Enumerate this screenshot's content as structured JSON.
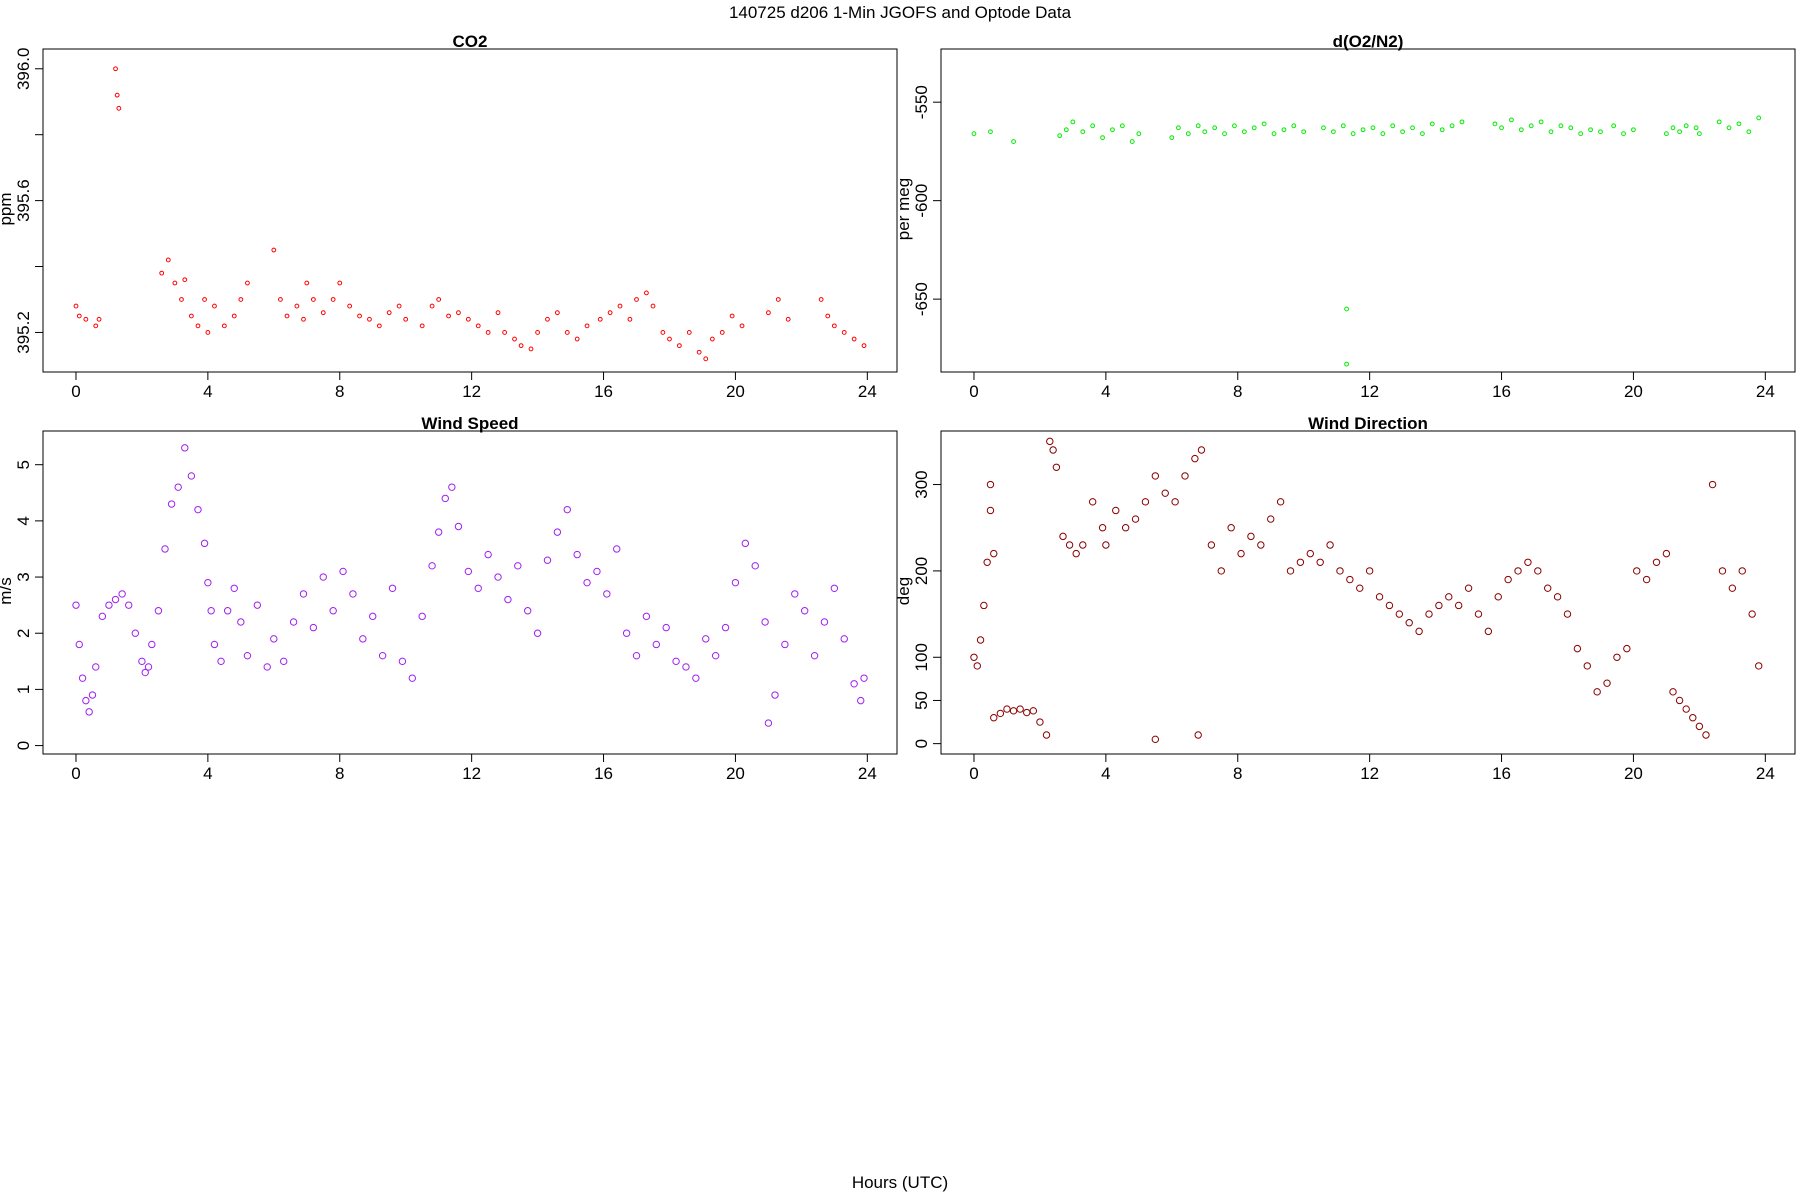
{
  "figure": {
    "title": "140725   d206   1-Min  JGOFS and Optode Data",
    "xlabel": "Hours (UTC)"
  },
  "chart_data": [
    {
      "type": "scatter",
      "title": "CO2",
      "xlabel": "",
      "ylabel": "ppm",
      "xlim": [
        -1,
        24.9
      ],
      "ylim": [
        395.08,
        396.06
      ],
      "xticks": [
        0,
        4,
        8,
        12,
        16,
        20,
        24
      ],
      "yticks": [
        395.2,
        395.6,
        396.0
      ],
      "yticks_unlabeled": [
        395.4,
        395.8
      ],
      "color": "#ff0000",
      "marker": "small-open-circle",
      "series": [
        {
          "x": [
            0.0,
            0.1,
            0.3,
            0.6,
            0.7,
            1.2,
            1.25,
            1.3,
            2.6,
            2.8,
            3.0,
            3.2,
            3.3,
            3.5,
            3.7,
            3.9,
            4.0,
            4.2,
            4.5,
            4.8,
            5.0,
            5.2,
            6.0,
            6.2,
            6.4,
            6.7,
            6.9,
            7.0,
            7.2,
            7.5,
            7.8,
            8.0,
            8.3,
            8.6,
            8.9,
            9.2,
            9.5,
            9.8,
            10.0,
            10.5,
            10.8,
            11.0,
            11.3,
            11.6,
            11.9,
            12.2,
            12.5,
            12.8,
            13.0,
            13.3,
            13.5,
            13.8,
            14.0,
            14.3,
            14.6,
            14.9,
            15.2,
            15.5,
            15.9,
            16.2,
            16.5,
            16.8,
            17.0,
            17.3,
            17.5,
            17.8,
            18.0,
            18.3,
            18.6,
            18.9,
            19.1,
            19.3,
            19.6,
            19.9,
            20.2,
            21.0,
            21.3,
            21.6,
            22.6,
            22.8,
            23.0,
            23.3,
            23.6,
            23.9
          ],
          "y": [
            395.28,
            395.25,
            395.24,
            395.22,
            395.24,
            396.0,
            395.92,
            395.88,
            395.38,
            395.42,
            395.35,
            395.3,
            395.36,
            395.25,
            395.22,
            395.3,
            395.2,
            395.28,
            395.22,
            395.25,
            395.3,
            395.35,
            395.45,
            395.3,
            395.25,
            395.28,
            395.24,
            395.35,
            395.3,
            395.26,
            395.3,
            395.35,
            395.28,
            395.25,
            395.24,
            395.22,
            395.26,
            395.28,
            395.24,
            395.22,
            395.28,
            395.3,
            395.25,
            395.26,
            395.24,
            395.22,
            395.2,
            395.26,
            395.2,
            395.18,
            395.16,
            395.15,
            395.2,
            395.24,
            395.26,
            395.2,
            395.18,
            395.22,
            395.24,
            395.26,
            395.28,
            395.24,
            395.3,
            395.32,
            395.28,
            395.2,
            395.18,
            395.16,
            395.2,
            395.14,
            395.12,
            395.18,
            395.2,
            395.25,
            395.22,
            395.26,
            395.3,
            395.24,
            395.3,
            395.25,
            395.22,
            395.2,
            395.18,
            395.16
          ]
        }
      ]
    },
    {
      "type": "scatter",
      "title": "d(O2/N2)",
      "xlabel": "",
      "ylabel": "per meg",
      "xlim": [
        -1,
        24.9
      ],
      "ylim": [
        -687,
        -523
      ],
      "xticks": [
        0,
        4,
        8,
        12,
        16,
        20,
        24
      ],
      "yticks": [
        -650,
        -600,
        -550
      ],
      "color": "#00ee00",
      "marker": "small-open-circle",
      "series": [
        {
          "x": [
            0.0,
            0.5,
            1.2,
            2.6,
            2.8,
            3.0,
            3.3,
            3.6,
            3.9,
            4.2,
            4.5,
            4.8,
            5.0,
            6.0,
            6.2,
            6.5,
            6.8,
            7.0,
            7.3,
            7.6,
            7.9,
            8.2,
            8.5,
            8.8,
            9.1,
            9.4,
            9.7,
            10.0,
            10.6,
            10.9,
            11.2,
            11.5,
            11.8,
            12.1,
            12.4,
            12.7,
            13.0,
            13.3,
            13.6,
            13.9,
            14.2,
            14.5,
            14.8,
            15.8,
            16.0,
            16.3,
            16.6,
            16.9,
            17.2,
            17.5,
            17.8,
            18.1,
            18.4,
            18.7,
            19.0,
            19.4,
            19.7,
            20.0,
            21.0,
            21.2,
            21.4,
            21.6,
            21.9,
            22.0,
            22.6,
            22.9,
            23.2,
            23.5,
            23.8,
            11.3,
            11.3
          ],
          "y": [
            -566,
            -565,
            -570,
            -567,
            -564,
            -560,
            -565,
            -562,
            -568,
            -564,
            -562,
            -570,
            -566,
            -568,
            -563,
            -566,
            -562,
            -565,
            -563,
            -566,
            -562,
            -565,
            -563,
            -561,
            -566,
            -564,
            -562,
            -565,
            -563,
            -565,
            -562,
            -566,
            -564,
            -563,
            -566,
            -562,
            -565,
            -563,
            -566,
            -561,
            -564,
            -562,
            -560,
            -561,
            -563,
            -559,
            -564,
            -562,
            -560,
            -565,
            -562,
            -563,
            -566,
            -564,
            -565,
            -562,
            -566,
            -564,
            -566,
            -563,
            -565,
            -562,
            -563,
            -566,
            -560,
            -563,
            -561,
            -565,
            -558,
            -655,
            -683
          ]
        }
      ]
    },
    {
      "type": "scatter",
      "title": "Wind Speed",
      "xlabel": "",
      "ylabel": "m/s",
      "xlim": [
        -1,
        24.9
      ],
      "ylim": [
        -0.15,
        5.6
      ],
      "xticks": [
        0,
        4,
        8,
        12,
        16,
        20,
        24
      ],
      "yticks": [
        0,
        1,
        2,
        3,
        4,
        5
      ],
      "color": "#a020f0",
      "marker": "open-circle",
      "series": [
        {
          "x": [
            0.0,
            0.1,
            0.2,
            0.3,
            0.4,
            0.5,
            0.6,
            0.8,
            1.0,
            1.2,
            1.4,
            1.6,
            1.8,
            2.0,
            2.1,
            2.2,
            2.3,
            2.5,
            2.7,
            2.9,
            3.1,
            3.3,
            3.5,
            3.7,
            3.9,
            4.0,
            4.1,
            4.2,
            4.4,
            4.6,
            4.8,
            5.0,
            5.2,
            5.5,
            5.8,
            6.0,
            6.3,
            6.6,
            6.9,
            7.2,
            7.5,
            7.8,
            8.1,
            8.4,
            8.7,
            9.0,
            9.3,
            9.6,
            9.9,
            10.2,
            10.5,
            10.8,
            11.0,
            11.2,
            11.4,
            11.6,
            11.9,
            12.2,
            12.5,
            12.8,
            13.1,
            13.4,
            13.7,
            14.0,
            14.3,
            14.6,
            14.9,
            15.2,
            15.5,
            15.8,
            16.1,
            16.4,
            16.7,
            17.0,
            17.3,
            17.6,
            17.9,
            18.2,
            18.5,
            18.8,
            19.1,
            19.4,
            19.7,
            20.0,
            20.3,
            20.6,
            20.9,
            21.0,
            21.2,
            21.5,
            21.8,
            22.1,
            22.4,
            22.7,
            23.0,
            23.3,
            23.6,
            23.8,
            23.9
          ],
          "y": [
            2.5,
            1.8,
            1.2,
            0.8,
            0.6,
            0.9,
            1.4,
            2.3,
            2.5,
            2.6,
            2.7,
            2.5,
            2.0,
            1.5,
            1.3,
            1.4,
            1.8,
            2.4,
            3.5,
            4.3,
            4.6,
            5.3,
            4.8,
            4.2,
            3.6,
            2.9,
            2.4,
            1.8,
            1.5,
            2.4,
            2.8,
            2.2,
            1.6,
            2.5,
            1.4,
            1.9,
            1.5,
            2.2,
            2.7,
            2.1,
            3.0,
            2.4,
            3.1,
            2.7,
            1.9,
            2.3,
            1.6,
            2.8,
            1.5,
            1.2,
            2.3,
            3.2,
            3.8,
            4.4,
            4.6,
            3.9,
            3.1,
            2.8,
            3.4,
            3.0,
            2.6,
            3.2,
            2.4,
            2.0,
            3.3,
            3.8,
            4.2,
            3.4,
            2.9,
            3.1,
            2.7,
            3.5,
            2.0,
            1.6,
            2.3,
            1.8,
            2.1,
            1.5,
            1.4,
            1.2,
            1.9,
            1.6,
            2.1,
            2.9,
            3.6,
            3.2,
            2.2,
            0.4,
            0.9,
            1.8,
            2.7,
            2.4,
            1.6,
            2.2,
            2.8,
            1.9,
            1.1,
            0.8,
            1.2
          ]
        }
      ]
    },
    {
      "type": "scatter",
      "title": "Wind Direction",
      "xlabel": "",
      "ylabel": "deg",
      "xlim": [
        -1,
        24.9
      ],
      "ylim": [
        -12,
        362
      ],
      "xticks": [
        0,
        4,
        8,
        12,
        16,
        20,
        24
      ],
      "yticks": [
        0,
        50,
        100,
        200,
        300
      ],
      "color": "#8b0000",
      "marker": "open-circle",
      "series": [
        {
          "x": [
            0.0,
            0.1,
            0.2,
            0.3,
            0.4,
            0.5,
            0.6,
            0.8,
            1.0,
            1.2,
            1.4,
            1.6,
            1.8,
            2.0,
            2.2,
            2.3,
            2.5,
            2.7,
            2.9,
            3.1,
            3.3,
            3.6,
            3.9,
            4.0,
            4.3,
            4.6,
            4.9,
            5.2,
            5.5,
            5.8,
            6.1,
            6.4,
            6.7,
            6.9,
            7.2,
            7.5,
            7.8,
            8.1,
            8.4,
            8.7,
            9.0,
            9.3,
            9.6,
            9.9,
            10.2,
            10.5,
            10.8,
            11.1,
            11.4,
            11.7,
            12.0,
            12.3,
            12.6,
            12.9,
            13.2,
            13.5,
            13.8,
            14.1,
            14.4,
            14.7,
            15.0,
            15.3,
            15.6,
            15.9,
            16.2,
            16.5,
            16.8,
            17.1,
            17.4,
            17.7,
            18.0,
            18.3,
            18.6,
            18.9,
            19.2,
            19.5,
            19.8,
            20.1,
            20.4,
            20.7,
            21.0,
            21.2,
            21.4,
            21.6,
            21.8,
            22.0,
            22.2,
            22.4,
            22.7,
            23.0,
            23.3,
            23.6,
            23.8,
            5.5,
            6.8,
            0.5,
            0.6,
            2.4
          ],
          "y": [
            100,
            90,
            120,
            160,
            210,
            300,
            30,
            35,
            40,
            38,
            40,
            36,
            38,
            25,
            10,
            350,
            320,
            240,
            230,
            220,
            230,
            280,
            250,
            230,
            270,
            250,
            260,
            280,
            310,
            290,
            280,
            310,
            330,
            340,
            230,
            200,
            250,
            220,
            240,
            230,
            260,
            280,
            200,
            210,
            220,
            210,
            230,
            200,
            190,
            180,
            200,
            170,
            160,
            150,
            140,
            130,
            150,
            160,
            170,
            160,
            180,
            150,
            130,
            170,
            190,
            200,
            210,
            200,
            180,
            170,
            150,
            110,
            90,
            60,
            70,
            100,
            110,
            200,
            190,
            210,
            220,
            60,
            50,
            40,
            30,
            20,
            10,
            300,
            200,
            180,
            200,
            150,
            90,
            5,
            10,
            270,
            220,
            340
          ]
        }
      ]
    }
  ]
}
